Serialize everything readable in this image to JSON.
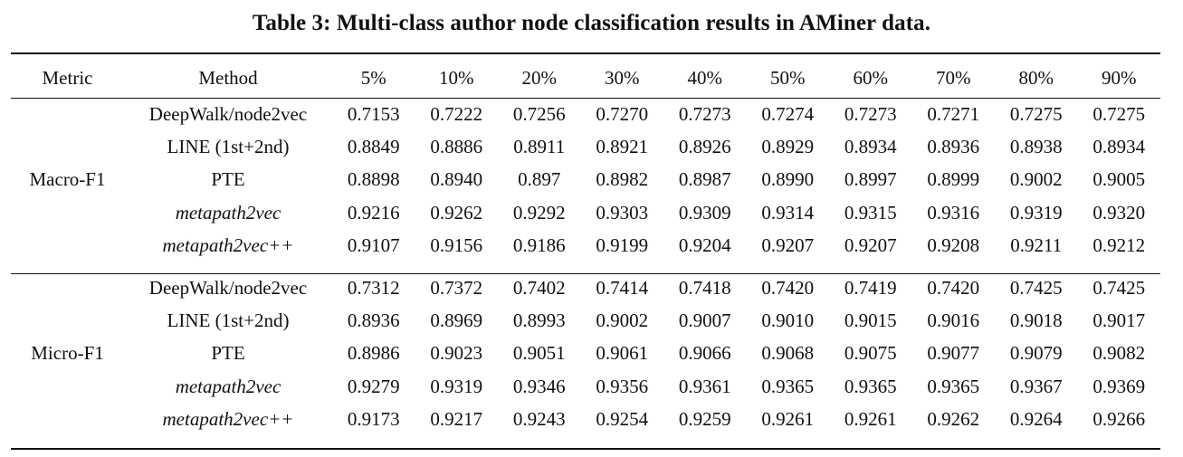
{
  "caption": "Table 3: Multi-class author node classification results in AMiner data.",
  "table": {
    "headers": [
      "Metric",
      "Method",
      "5%",
      "10%",
      "20%",
      "30%",
      "40%",
      "50%",
      "60%",
      "70%",
      "80%",
      "90%"
    ],
    "groups": [
      {
        "metric": "Macro-F1",
        "rows": [
          {
            "method": "DeepWalk/node2vec",
            "values": [
              "0.7153",
              "0.7222",
              "0.7256",
              "0.7270",
              "0.7273",
              "0.7274",
              "0.7273",
              "0.7271",
              "0.7275",
              "0.7275"
            ]
          },
          {
            "method": "LINE (1st+2nd)",
            "values": [
              "0.8849",
              "0.8886",
              "0.8911",
              "0.8921",
              "0.8926",
              "0.8929",
              "0.8934",
              "0.8936",
              "0.8938",
              "0.8934"
            ]
          },
          {
            "method": "PTE",
            "values": [
              "0.8898",
              "0.8940",
              "0.897",
              "0.8982",
              "0.8987",
              "0.8990",
              "0.8997",
              "0.8999",
              "0.9002",
              "0.9005"
            ]
          },
          {
            "method": "metapath2vec",
            "values": [
              "0.9216",
              "0.9262",
              "0.9292",
              "0.9303",
              "0.9309",
              "0.9314",
              "0.9315",
              "0.9316",
              "0.9319",
              "0.9320"
            ]
          },
          {
            "method": "metapath2vec++",
            "values": [
              "0.9107",
              "0.9156",
              "0.9186",
              "0.9199",
              "0.9204",
              "0.9207",
              "0.9207",
              "0.9208",
              "0.9211",
              "0.9212"
            ]
          }
        ]
      },
      {
        "metric": "Micro-F1",
        "rows": [
          {
            "method": "DeepWalk/node2vec",
            "values": [
              "0.7312",
              "0.7372",
              "0.7402",
              "0.7414",
              "0.7418",
              "0.7420",
              "0.7419",
              "0.7420",
              "0.7425",
              "0.7425"
            ]
          },
          {
            "method": "LINE (1st+2nd)",
            "values": [
              "0.8936",
              "0.8969",
              "0.8993",
              "0.9002",
              "0.9007",
              "0.9010",
              "0.9015",
              "0.9016",
              "0.9018",
              "0.9017"
            ]
          },
          {
            "method": "PTE",
            "values": [
              "0.8986",
              "0.9023",
              "0.9051",
              "0.9061",
              "0.9066",
              "0.9068",
              "0.9075",
              "0.9077",
              "0.9079",
              "0.9082"
            ]
          },
          {
            "method": "metapath2vec",
            "values": [
              "0.9279",
              "0.9319",
              "0.9346",
              "0.9356",
              "0.9361",
              "0.9365",
              "0.9365",
              "0.9365",
              "0.9367",
              "0.9369"
            ]
          },
          {
            "method": "metapath2vec++",
            "values": [
              "0.9173",
              "0.9217",
              "0.9243",
              "0.9254",
              "0.9259",
              "0.9261",
              "0.9261",
              "0.9262",
              "0.9264",
              "0.9266"
            ]
          }
        ]
      }
    ]
  }
}
